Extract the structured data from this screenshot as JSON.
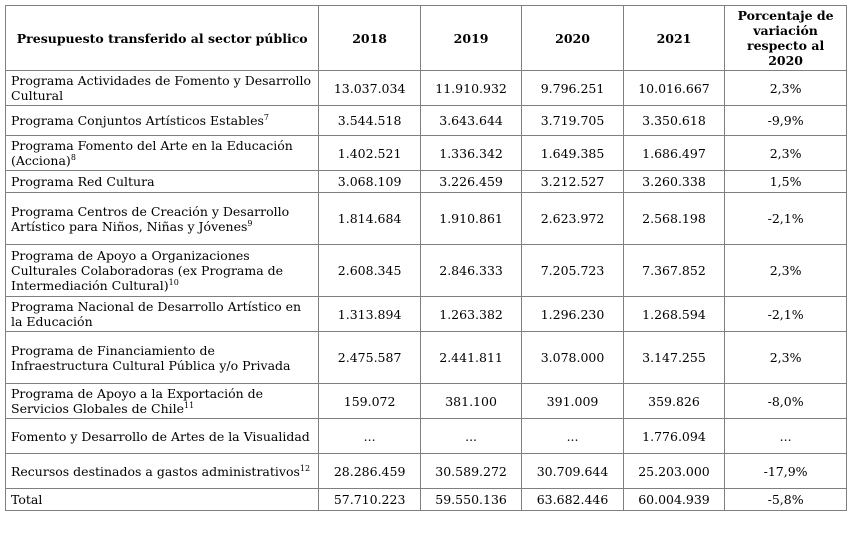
{
  "table": {
    "headers": {
      "name": "Presupuesto transferido al sector público",
      "y2018": "2018",
      "y2019": "2019",
      "y2020": "2020",
      "y2021": "2021",
      "pct": "Porcentaje de variación respecto al 2020"
    },
    "rows": [
      {
        "name": "Programa Actividades de Fomento y Desarrollo Cultural",
        "note": "",
        "v2018": "13.037.034",
        "v2019": "11.910.932",
        "v2020": "9.796.251",
        "v2021": "10.016.667",
        "pct": "2,3%"
      },
      {
        "name": "Programa Conjuntos Artísticos Estables",
        "note": "7",
        "v2018": "3.544.518",
        "v2019": "3.643.644",
        "v2020": "3.719.705",
        "v2021": "3.350.618",
        "pct": "-9,9%"
      },
      {
        "name": "Programa Fomento del Arte en la Educación (Acciona)",
        "note": "8",
        "v2018": "1.402.521",
        "v2019": "1.336.342",
        "v2020": "1.649.385",
        "v2021": "1.686.497",
        "pct": "2,3%"
      },
      {
        "name": "Programa Red Cultura",
        "note": "",
        "v2018": "3.068.109",
        "v2019": "3.226.459",
        "v2020": "3.212.527",
        "v2021": "3.260.338",
        "pct": "1,5%"
      },
      {
        "name": "Programa Centros de Creación y Desarrollo Artístico para Niños, Niñas y Jóvenes",
        "note": "9",
        "v2018": "1.814.684",
        "v2019": "1.910.861",
        "v2020": "2.623.972",
        "v2021": "2.568.198",
        "pct": "-2,1%"
      },
      {
        "name": "Programa de Apoyo a Organizaciones Culturales Colaboradoras (ex Programa de Intermediación Cultural)",
        "note": "10",
        "v2018": "2.608.345",
        "v2019": "2.846.333",
        "v2020": "7.205.723",
        "v2021": "7.367.852",
        "pct": "2,3%"
      },
      {
        "name": "Programa Nacional de Desarrollo Artístico en la Educación",
        "note": "",
        "v2018": "1.313.894",
        "v2019": "1.263.382",
        "v2020": "1.296.230",
        "v2021": "1.268.594",
        "pct": "-2,1%"
      },
      {
        "name": "Programa de Financiamiento de Infraestructura Cultural Pública y/o Privada",
        "note": "",
        "v2018": "2.475.587",
        "v2019": "2.441.811",
        "v2020": "3.078.000",
        "v2021": "3.147.255",
        "pct": "2,3%"
      },
      {
        "name": "Programa de Apoyo a la Exportación de Servicios Globales de Chile",
        "note": "11",
        "v2018": "159.072",
        "v2019": "381.100",
        "v2020": "391.009",
        "v2021": "359.826",
        "pct": "-8,0%"
      },
      {
        "name": "Fomento y Desarrollo de Artes de la Visualidad",
        "note": "",
        "v2018": "...",
        "v2019": "...",
        "v2020": "...",
        "v2021": "1.776.094",
        "pct": "..."
      },
      {
        "name": "Recursos destinados a gastos administrativos",
        "note": "12",
        "v2018": "28.286.459",
        "v2019": "30.589.272",
        "v2020": "30.709.644",
        "v2021": "25.203.000",
        "pct": "-17,9%"
      },
      {
        "name": "Total",
        "note": "",
        "v2018": "57.710.223",
        "v2019": "59.550.136",
        "v2020": "63.682.446",
        "v2021": "60.004.939",
        "pct": "-5,8%"
      }
    ]
  }
}
